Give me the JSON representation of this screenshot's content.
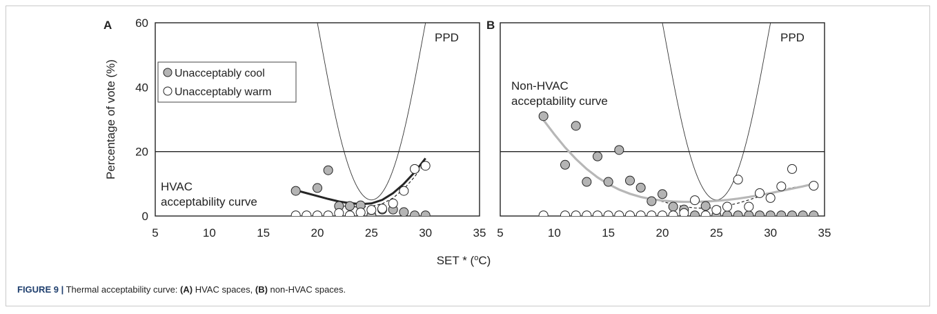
{
  "caption": {
    "label": "FIGURE 9 |",
    "text_before_a": " Thermal acceptability curve: ",
    "part_a": "(A)",
    "text_a": " HVAC spaces, ",
    "part_b": "(B)",
    "text_b": " non-HVAC spaces."
  },
  "xlabel_main": "SET * (",
  "xlabel_sup": "o",
  "xlabel_end": "C)",
  "ylabel": "Percentage of vote (%)",
  "legend": {
    "cool": "Unacceptably cool",
    "warm": "Unacceptably warm"
  },
  "colors": {
    "cool_fill": "#b4b4b4",
    "warm_fill": "#ffffff",
    "hvac_curve": "#262626",
    "nonhvac_curve": "#b7b7b7"
  },
  "chart_data": [
    {
      "panel": "A",
      "type": "scatter",
      "xlim": [
        5,
        35
      ],
      "ylim": [
        0,
        60
      ],
      "xticks": [
        5,
        10,
        15,
        20,
        25,
        30,
        35
      ],
      "yticks": [
        0,
        20,
        40,
        60
      ],
      "ppd_label": "PPD",
      "curve_label": [
        "HVAC",
        "acceptability curve"
      ],
      "threshold": 20,
      "cool": [
        [
          18,
          7.8
        ],
        [
          20,
          8.7
        ],
        [
          21,
          14.2
        ],
        [
          22,
          3.1
        ],
        [
          23,
          3.1
        ],
        [
          24,
          3.3
        ],
        [
          25,
          0.2
        ],
        [
          26,
          2.0
        ],
        [
          27,
          2.0
        ],
        [
          28,
          1.2
        ],
        [
          29,
          0.2
        ],
        [
          30,
          0.2
        ]
      ],
      "warm": [
        [
          18,
          0.2
        ],
        [
          19,
          0.2
        ],
        [
          20,
          0.2
        ],
        [
          21,
          0.2
        ],
        [
          22,
          0.9
        ],
        [
          23,
          0.2
        ],
        [
          24,
          1.1
        ],
        [
          25,
          1.9
        ],
        [
          26,
          2.3
        ],
        [
          27,
          3.9
        ],
        [
          28,
          7.8
        ],
        [
          29,
          14.6
        ],
        [
          30,
          15.6
        ]
      ],
      "fit_curve": [
        [
          18,
          8.0
        ],
        [
          19,
          7.1
        ],
        [
          20,
          6.2
        ],
        [
          21,
          5.3
        ],
        [
          22,
          4.5
        ],
        [
          23,
          4.0
        ],
        [
          24,
          3.7
        ],
        [
          25,
          3.9
        ],
        [
          26,
          5.0
        ],
        [
          27,
          7.1
        ],
        [
          28,
          10.0
        ],
        [
          29,
          13.6
        ],
        [
          30,
          17.9
        ]
      ],
      "dashed_curve": [
        [
          22,
          3.2
        ],
        [
          23,
          2.9
        ],
        [
          24,
          2.8
        ],
        [
          25,
          3.0
        ],
        [
          26,
          3.8
        ],
        [
          27,
          5.6
        ],
        [
          28,
          8.4
        ],
        [
          29,
          12.2
        ],
        [
          30,
          16.9
        ]
      ]
    },
    {
      "panel": "B",
      "type": "scatter",
      "xlim": [
        5,
        35
      ],
      "ylim": [
        0,
        60
      ],
      "xticks": [
        5,
        10,
        15,
        20,
        25,
        30,
        35
      ],
      "yticks": [
        0,
        20,
        40,
        60
      ],
      "ppd_label": "PPD",
      "curve_label": [
        "Non-HVAC",
        "acceptability curve"
      ],
      "threshold": 20,
      "cool": [
        [
          9,
          31.0
        ],
        [
          11,
          15.9
        ],
        [
          12,
          28.0
        ],
        [
          13,
          10.6
        ],
        [
          14,
          18.5
        ],
        [
          15,
          10.6
        ],
        [
          16,
          20.5
        ],
        [
          17,
          11.0
        ],
        [
          18,
          8.8
        ],
        [
          19,
          4.6
        ],
        [
          20,
          6.8
        ],
        [
          21,
          2.9
        ],
        [
          22,
          2.0
        ],
        [
          23,
          0.2
        ],
        [
          24,
          3.1
        ],
        [
          25,
          0.2
        ],
        [
          26,
          0.2
        ],
        [
          27,
          0.2
        ],
        [
          28,
          0.2
        ],
        [
          29,
          0.2
        ],
        [
          30,
          0.2
        ],
        [
          31,
          0.2
        ],
        [
          32,
          0.2
        ],
        [
          33,
          0.2
        ],
        [
          34,
          0.2
        ]
      ],
      "warm": [
        [
          9,
          0.2
        ],
        [
          11,
          0.2
        ],
        [
          12,
          0.2
        ],
        [
          13,
          0.2
        ],
        [
          14,
          0.2
        ],
        [
          15,
          0.2
        ],
        [
          16,
          0.2
        ],
        [
          17,
          0.2
        ],
        [
          18,
          0.2
        ],
        [
          19,
          0.2
        ],
        [
          20,
          0.2
        ],
        [
          21,
          0.2
        ],
        [
          22,
          0.9
        ],
        [
          23,
          4.9
        ],
        [
          24,
          0.2
        ],
        [
          25,
          1.9
        ],
        [
          26,
          2.9
        ],
        [
          27,
          11.3
        ],
        [
          28,
          2.9
        ],
        [
          29,
          7.1
        ],
        [
          30,
          5.6
        ],
        [
          31,
          9.2
        ],
        [
          32,
          14.6
        ],
        [
          34,
          9.4
        ]
      ],
      "fit_curve": [
        [
          9,
          29.8
        ],
        [
          10,
          25.4
        ],
        [
          11,
          21.3
        ],
        [
          12,
          17.7
        ],
        [
          13,
          14.6
        ],
        [
          14,
          12.0
        ],
        [
          15,
          9.9
        ],
        [
          16,
          8.2
        ],
        [
          17,
          6.9
        ],
        [
          18,
          5.9
        ],
        [
          19,
          5.2
        ],
        [
          20,
          4.8
        ],
        [
          21,
          4.5
        ],
        [
          22,
          4.4
        ],
        [
          23,
          4.4
        ],
        [
          24,
          4.5
        ],
        [
          25,
          4.7
        ],
        [
          26,
          5.0
        ],
        [
          27,
          5.4
        ],
        [
          28,
          5.9
        ],
        [
          29,
          6.5
        ],
        [
          30,
          7.1
        ],
        [
          31,
          7.8
        ],
        [
          32,
          8.5
        ],
        [
          33,
          9.2
        ],
        [
          34,
          10.0
        ]
      ],
      "dashed_curve": [
        [
          19,
          5.4
        ],
        [
          20,
          4.5
        ],
        [
          21,
          3.6
        ],
        [
          22,
          2.9
        ],
        [
          23,
          2.5
        ],
        [
          24,
          2.4
        ],
        [
          25,
          2.6
        ],
        [
          26,
          3.2
        ],
        [
          27,
          4.0
        ],
        [
          28,
          5.0
        ],
        [
          29,
          6.1
        ],
        [
          30,
          7.1
        ],
        [
          31,
          8.0
        ],
        [
          32,
          8.8
        ],
        [
          33,
          9.3
        ],
        [
          34,
          9.6
        ]
      ]
    }
  ]
}
